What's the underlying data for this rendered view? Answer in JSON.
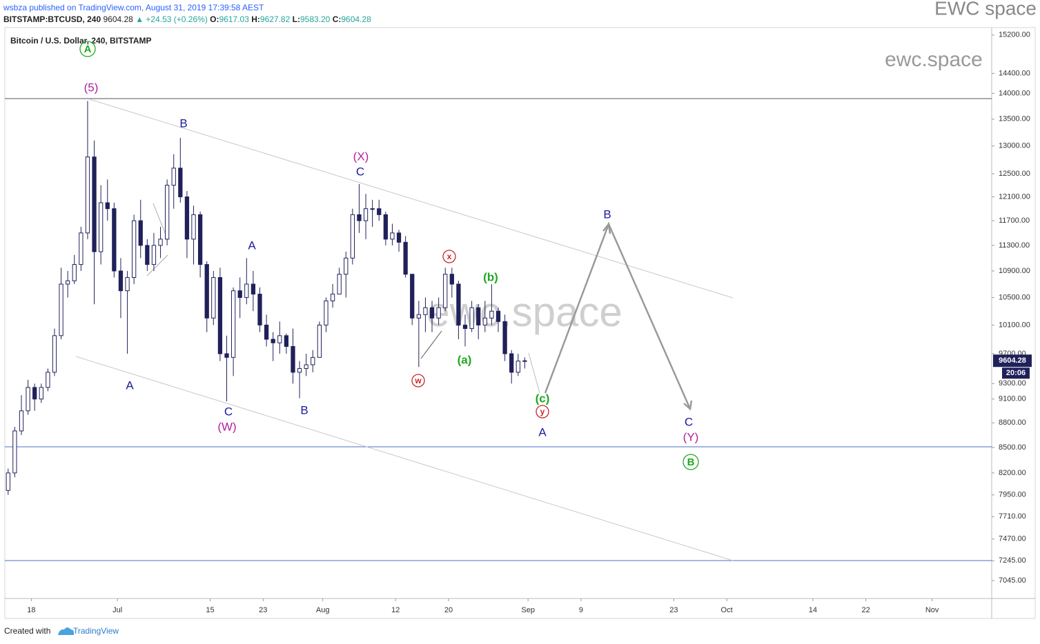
{
  "header": {
    "publisher": "wsbza published on TradingView.com, August 31, 2019 17:39:58 AEST",
    "symbol": "BITSTAMP:BTCUSD, 240",
    "last": "9604.28",
    "change": "▲ +24.53 (+0.26%)",
    "o_label": "O:",
    "o": "9617.03",
    "h_label": "H:",
    "h": "9627.82",
    "l_label": "L:",
    "l": "9583.20",
    "c_label": "C:",
    "c": "9604.28",
    "brand": "EWC space"
  },
  "chart_data": {
    "type": "candlestick",
    "title": "Bitcoin / U.S. Dollar, 240, BITSTAMP",
    "log_scale": true,
    "grid": false,
    "up_color": "#ffffff",
    "down_color": "#20205a",
    "line_color": "#20205a",
    "x": [
      "2019-06-14",
      "2019-06-15",
      "2019-06-16",
      "2019-06-17",
      "2019-06-18",
      "2019-06-19",
      "2019-06-20",
      "2019-06-21",
      "2019-06-22",
      "2019-06-23",
      "2019-06-24",
      "2019-06-25",
      "2019-06-26",
      "2019-06-27",
      "2019-06-28",
      "2019-06-29",
      "2019-06-30",
      "2019-07-01",
      "2019-07-02",
      "2019-07-03",
      "2019-07-04",
      "2019-07-05",
      "2019-07-06",
      "2019-07-07",
      "2019-07-08",
      "2019-07-09",
      "2019-07-10",
      "2019-07-11",
      "2019-07-12",
      "2019-07-13",
      "2019-07-14",
      "2019-07-15",
      "2019-07-16",
      "2019-07-17",
      "2019-07-18",
      "2019-07-19",
      "2019-07-20",
      "2019-07-21",
      "2019-07-22",
      "2019-07-23",
      "2019-07-24",
      "2019-07-25",
      "2019-07-26",
      "2019-07-27",
      "2019-07-28",
      "2019-07-29",
      "2019-07-30",
      "2019-07-31",
      "2019-08-01",
      "2019-08-02",
      "2019-08-03",
      "2019-08-04",
      "2019-08-05",
      "2019-08-06",
      "2019-08-07",
      "2019-08-08",
      "2019-08-09",
      "2019-08-10",
      "2019-08-11",
      "2019-08-12",
      "2019-08-13",
      "2019-08-14",
      "2019-08-15",
      "2019-08-16",
      "2019-08-17",
      "2019-08-18",
      "2019-08-19",
      "2019-08-20",
      "2019-08-21",
      "2019-08-22",
      "2019-08-23",
      "2019-08-24",
      "2019-08-25",
      "2019-08-26",
      "2019-08-27",
      "2019-08-28",
      "2019-08-29",
      "2019-08-30",
      "2019-08-31"
    ],
    "open": [
      8000,
      8200,
      8700,
      8950,
      9250,
      9100,
      9250,
      9450,
      9950,
      10700,
      10750,
      11000,
      11500,
      12800,
      11200,
      12000,
      11900,
      10900,
      10600,
      10800,
      11700,
      11300,
      11000,
      11300,
      11400,
      12300,
      12600,
      12100,
      11400,
      11800,
      11000,
      10200,
      10800,
      9700,
      9650,
      10600,
      10500,
      10700,
      10550,
      10100,
      9900,
      9850,
      9950,
      9800,
      9450,
      9500,
      9550,
      9650,
      10100,
      10450,
      10550,
      10850,
      11100,
      11800,
      11700,
      11900,
      11900,
      11800,
      11400,
      11500,
      11350,
      10850,
      10200,
      10250,
      10350,
      10200,
      10350,
      10850,
      10700,
      10100,
      10050,
      10350,
      10100,
      10200,
      10300,
      10150,
      9700,
      9450,
      9600
    ],
    "high": [
      8250,
      8750,
      9150,
      9350,
      9300,
      9300,
      9500,
      10050,
      10950,
      10900,
      11150,
      11600,
      13850,
      13100,
      12300,
      12400,
      12000,
      11100,
      10900,
      11800,
      12050,
      11400,
      11500,
      11600,
      12400,
      12850,
      13150,
      12200,
      11950,
      11850,
      11050,
      10900,
      10950,
      9950,
      10650,
      10800,
      11100,
      10900,
      10650,
      10250,
      10000,
      10150,
      9980,
      10050,
      9600,
      9700,
      9750,
      10150,
      10500,
      10700,
      10950,
      11200,
      11900,
      12320,
      12150,
      12050,
      12050,
      11850,
      11650,
      11550,
      11450,
      10850,
      10450,
      10500,
      10450,
      10500,
      10950,
      10950,
      10750,
      10250,
      10450,
      10400,
      10450,
      10700,
      10350,
      10250,
      9750,
      9700,
      9650
    ],
    "low": [
      7950,
      8150,
      8650,
      8900,
      8950,
      9050,
      9200,
      9400,
      9900,
      10500,
      10700,
      10900,
      11400,
      10400,
      11000,
      11700,
      10800,
      10200,
      9700,
      10700,
      11100,
      10900,
      10900,
      11100,
      11300,
      11900,
      12000,
      11100,
      11000,
      10800,
      10000,
      10100,
      9600,
      9070,
      9400,
      10200,
      10400,
      10300,
      10000,
      9800,
      9600,
      9700,
      9700,
      9300,
      9110,
      9400,
      9450,
      9650,
      10000,
      10350,
      10550,
      10500,
      11000,
      11500,
      11400,
      11600,
      11700,
      11300,
      11300,
      11200,
      10800,
      10100,
      9520,
      10000,
      10000,
      10100,
      10300,
      10500,
      9900,
      9800,
      10000,
      9900,
      10000,
      10100,
      10000,
      9600,
      9300,
      9400,
      9500
    ],
    "close": [
      8200,
      8700,
      8950,
      9250,
      9100,
      9250,
      9450,
      9950,
      10700,
      10750,
      11000,
      11500,
      12800,
      11200,
      12000,
      11900,
      10900,
      10600,
      10800,
      11700,
      11300,
      11000,
      11300,
      11400,
      12300,
      12600,
      12100,
      11400,
      11800,
      11000,
      10200,
      10800,
      9700,
      9650,
      10600,
      10500,
      10700,
      10550,
      10100,
      9900,
      9850,
      9950,
      9800,
      9450,
      9500,
      9550,
      9650,
      10100,
      10450,
      10550,
      10850,
      11100,
      11800,
      11700,
      11900,
      11900,
      11800,
      11400,
      11500,
      11350,
      10850,
      10200,
      10250,
      10350,
      10200,
      10350,
      10850,
      10700,
      10100,
      10050,
      10350,
      10100,
      10200,
      10300,
      10150,
      9700,
      9450,
      9600,
      9604.28
    ],
    "countdown": "20:06",
    "ylim": [
      6870,
      15360
    ],
    "yticks": [
      {
        "value": 7045,
        "label": "7045.00"
      },
      {
        "value": 7245,
        "label": "7245.00"
      },
      {
        "value": 7470,
        "label": "7470.00"
      },
      {
        "value": 7710,
        "label": "7710.00"
      },
      {
        "value": 7950,
        "label": "7950.00"
      },
      {
        "value": 8200,
        "label": "8200.00"
      },
      {
        "value": 8500,
        "label": "8500.00"
      },
      {
        "value": 8800,
        "label": "8800.00"
      },
      {
        "value": 9100,
        "label": "9100.00"
      },
      {
        "value": 9300,
        "label": "9300.00"
      },
      {
        "value": 9700,
        "label": "9700.00"
      },
      {
        "value": 10100,
        "label": "10100.00"
      },
      {
        "value": 10500,
        "label": "10500.00"
      },
      {
        "value": 10900,
        "label": "10900.00"
      },
      {
        "value": 11300,
        "label": "11300.00"
      },
      {
        "value": 11700,
        "label": "11700.00"
      },
      {
        "value": 12100,
        "label": "12100.00"
      },
      {
        "value": 12500,
        "label": "12500.00"
      },
      {
        "value": 13000,
        "label": "13000.00"
      },
      {
        "value": 13500,
        "label": "13500.00"
      },
      {
        "value": 14000,
        "label": "14000.00"
      },
      {
        "value": 14400,
        "label": "14400.00"
      },
      {
        "value": 15200,
        "label": "15200.00"
      }
    ],
    "xlim": [
      "2019-06-14",
      "2019-11-10"
    ],
    "xticks": [
      {
        "value": "2019-06-18",
        "label": "18"
      },
      {
        "value": "2019-07-01",
        "label": "Jul"
      },
      {
        "value": "2019-07-15",
        "label": "15"
      },
      {
        "value": "2019-07-23",
        "label": "23"
      },
      {
        "value": "2019-08-01",
        "label": "Aug"
      },
      {
        "value": "2019-08-12",
        "label": "12"
      },
      {
        "value": "2019-08-20",
        "label": "20"
      },
      {
        "value": "2019-09-01",
        "label": "Sep"
      },
      {
        "value": "2019-09-09",
        "label": "9"
      },
      {
        "value": "2019-09-23",
        "label": "23"
      },
      {
        "value": "2019-10-01",
        "label": "Oct"
      },
      {
        "value": "2019-10-14",
        "label": "14"
      },
      {
        "value": "2019-10-22",
        "label": "22"
      },
      {
        "value": "2019-11-01",
        "label": "Nov"
      }
    ],
    "annotations": [
      {
        "text": "A",
        "color": "#1fa81f",
        "circled": true
      },
      {
        "text": "(5)",
        "color": "#b0209f"
      },
      {
        "text": "B",
        "color": "#1a1a9c"
      },
      {
        "text": "A",
        "color": "#1a1a9c"
      },
      {
        "text": "A",
        "color": "#1a1a9c"
      },
      {
        "text": "C",
        "color": "#1a1a9c"
      },
      {
        "text": "(W)",
        "color": "#b0209f"
      },
      {
        "text": "B",
        "color": "#1a1a9c"
      },
      {
        "text": "(X)",
        "color": "#b0209f"
      },
      {
        "text": "C",
        "color": "#1a1a9c"
      },
      {
        "text": "x",
        "color": "#c62828",
        "circled": true
      },
      {
        "text": "w",
        "color": "#c62828",
        "circled": true
      },
      {
        "text": "(b)",
        "color": "#1fa81f"
      },
      {
        "text": "(a)",
        "color": "#1fa81f"
      },
      {
        "text": "(c)",
        "color": "#1fa81f"
      },
      {
        "text": "y",
        "color": "#c62828",
        "circled": true
      },
      {
        "text": "A",
        "color": "#1a1a9c"
      },
      {
        "text": "B",
        "color": "#1a1a9c"
      },
      {
        "text": "C",
        "color": "#1a1a9c"
      },
      {
        "text": "(Y)",
        "color": "#b0209f"
      },
      {
        "text": "B",
        "color": "#1fa81f",
        "circled": true
      }
    ],
    "watermark": "ewc.space",
    "site": "ewc.space"
  },
  "footer": {
    "created": "Created with",
    "brand": "TradingView"
  }
}
